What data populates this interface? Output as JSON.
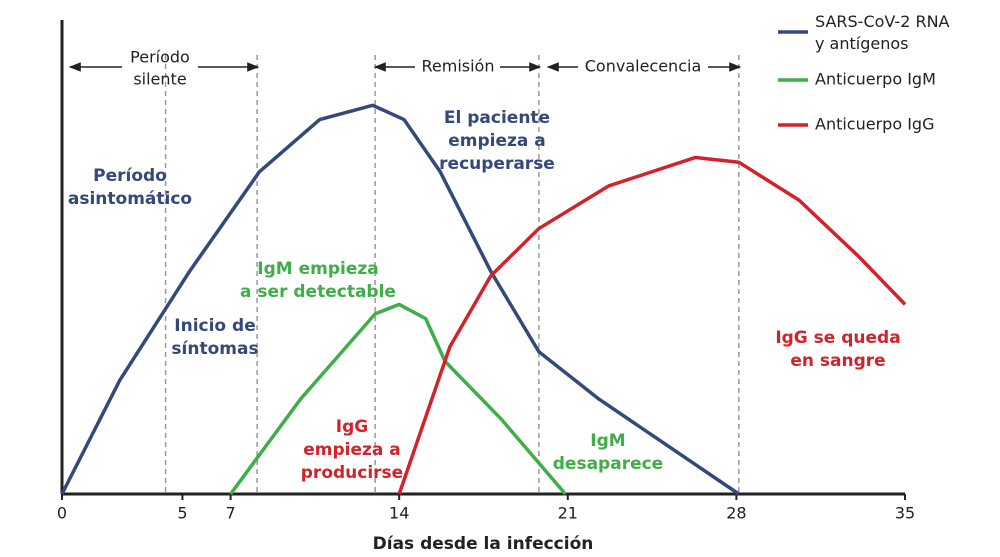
{
  "chart_data": {
    "type": "line",
    "xlabel": "Días desde la infección",
    "xlim": [
      0,
      35
    ],
    "xticks": [
      0,
      5,
      7,
      14,
      21,
      28,
      35
    ],
    "ylim": [
      0,
      100
    ],
    "reference_lines": [
      4.3,
      8.1,
      13,
      19.8,
      28.1
    ],
    "series": [
      {
        "name": "SARS-CoV-2 RNA y antígenos",
        "color": "#34497a",
        "x": [
          0,
          2.4,
          5.3,
          8.2,
          10.7,
          12.9,
          14.2,
          15.7,
          17.8,
          19.8,
          22.3,
          28.1
        ],
        "values": [
          0,
          24,
          47,
          68,
          79,
          82,
          79,
          68,
          47,
          30,
          20,
          0
        ]
      },
      {
        "name": "Anticuerpo IgM",
        "color": "#3fae49",
        "x": [
          7.0,
          9.9,
          13.0,
          14.0,
          15.1,
          15.9,
          18.2,
          20.9
        ],
        "values": [
          0,
          20,
          38,
          40,
          37,
          28,
          16,
          0
        ]
      },
      {
        "name": "Anticuerpo IgG",
        "color": "#d2232a",
        "x": [
          14.0,
          16.1,
          17.8,
          19.8,
          22.7,
          26.3,
          28.1,
          30.6,
          33.1,
          35.0
        ],
        "values": [
          0,
          31,
          46,
          56,
          65,
          71,
          70,
          62,
          50,
          40
        ]
      }
    ],
    "phases": [
      [
        "Período",
        "silente"
      ],
      [
        "Remisión"
      ],
      [
        "Convalecencia"
      ]
    ],
    "annotations": [
      {
        "lines": [
          "Período",
          "asintomático"
        ],
        "color": "#34497a"
      },
      {
        "lines": [
          "Inicio de",
          "síntomas"
        ],
        "color": "#34497a"
      },
      {
        "lines": [
          "El paciente",
          "empieza a",
          "recuperarse"
        ],
        "color": "#34497a"
      },
      {
        "lines": [
          "IgM empieza",
          "a ser detectable"
        ],
        "color": "#3fae49"
      },
      {
        "lines": [
          "IgG",
          "empieza a",
          "producirse"
        ],
        "color": "#d2232a"
      },
      {
        "lines": [
          "IgM",
          "desaparece"
        ],
        "color": "#3fae49"
      },
      {
        "lines": [
          "IgG se queda",
          "en sangre"
        ],
        "color": "#d2232a"
      }
    ]
  }
}
